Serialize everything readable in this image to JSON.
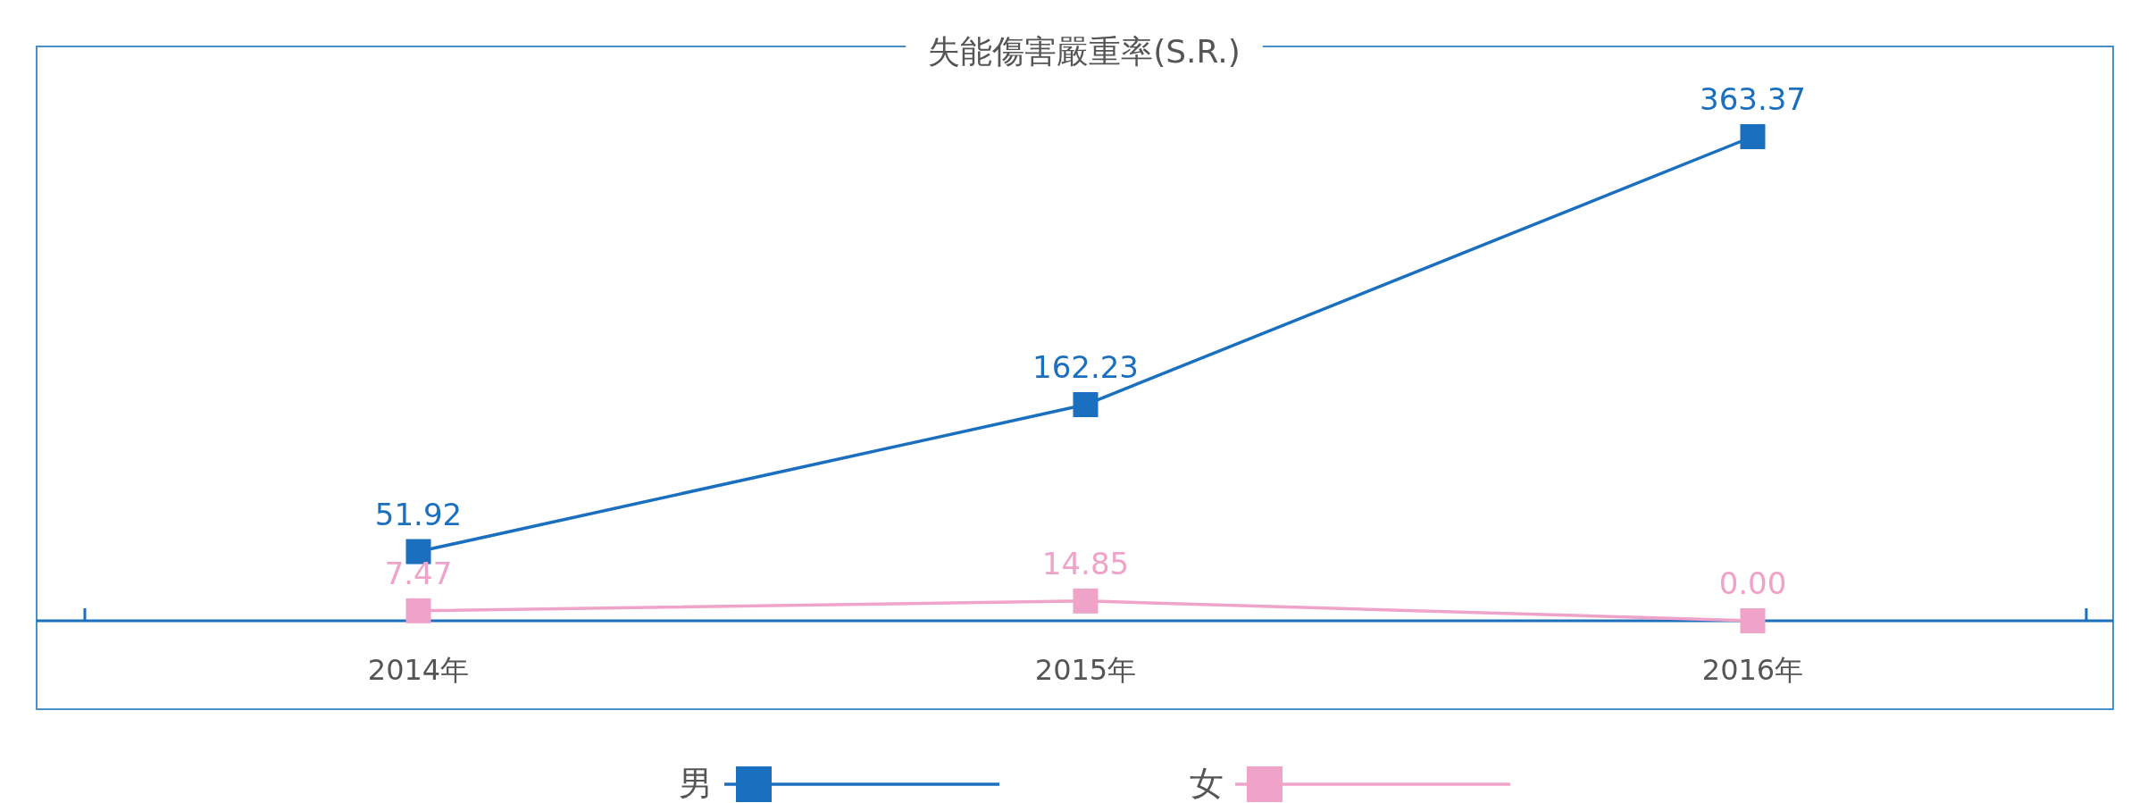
{
  "chart_data": {
    "type": "line",
    "title": "失能傷害嚴重率(S.R.)",
    "categories": [
      "2014年",
      "2015年",
      "2016年"
    ],
    "series": [
      {
        "name": "男",
        "color": "#1a6fbf",
        "values": [
          51.92,
          162.23,
          363.37
        ],
        "value_labels": [
          "51.92",
          "162.23",
          "363.37"
        ]
      },
      {
        "name": "女",
        "color": "#f0a3c8",
        "values": [
          7.47,
          14.85,
          0.0
        ],
        "value_labels": [
          "7.47",
          "14.85",
          "0.00"
        ]
      }
    ],
    "marker": "square",
    "legend": "bottom",
    "grid": false
  }
}
